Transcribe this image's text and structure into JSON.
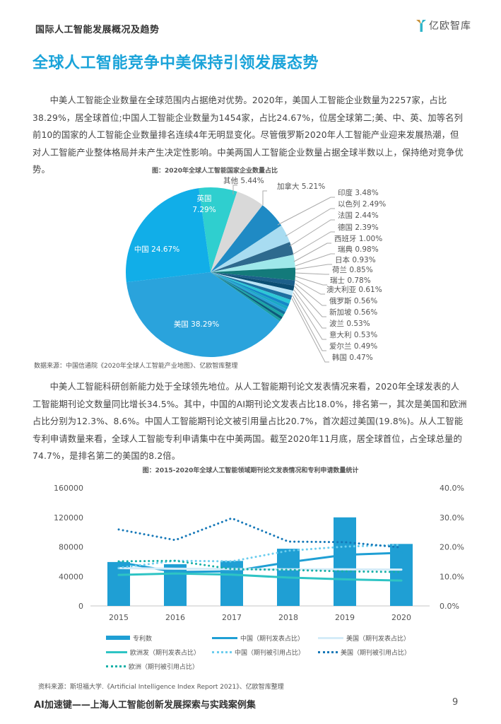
{
  "header": {
    "section_title": "国际人工智能发展概况及趋势",
    "logo_text": "亿欧智库",
    "logo_icon": "y-logo-icon"
  },
  "main_title": "全球人工智能竞争中美保持引领发展态势",
  "paragraphs": [
    "中美人工智能企业数量在全球范围内占据绝对优势。2020年，美国人工智能企业数量为2257家，占比38.29%，居全球首位;中国人工智能企业数量为1454家，占比24.67%，位居全球第二;美、中、英、加等名列前10的国家的人工智能企业数量排名连续4年无明显变化。尽管俄罗斯2020年人工智能产业迎来发展热潮，但对人工智能产业整体格局并未产生决定性影响。中美两国人工智能企业数量占据全球半数以上，保持绝对竞争优势。",
    "中美人工智能科研创新能力处于全球领先地位。从人工智能期刊论文发表情况来看，2020年全球发表的人工智能期刊论文数量同比增长34.5%。其中，中国的AI期刊论文发表占比18.0%，排名第一，其次是美国和欧洲占比分别为12.3%、8.6%。中国人工智能期刊论文被引用量占比20.7%，首次超过美国(19.8%)。从人工智能专利申请数量来看，全球人工智能专利申请集中在中美两国。截至2020年11月底，居全球首位，占全球总量的74.7%，是排名第二的美国的8.2倍。"
  ],
  "figure1": {
    "caption": "图：2020年全球人工智能国家企业数量占比",
    "source": "数据来源：中国信通院《2020年全球人工智能产业地图》、亿欧智库整理"
  },
  "figure2": {
    "caption": "图：2015-2020年全球人工智能领域期刊论文发表情况和专利申请数量统计",
    "source": "资料来源：斯坦福大学.《Artificial Intelligence Index Report 2021》、亿欧智库整理"
  },
  "footer": {
    "title": "AI加速键——上海人工智能创新发展探索与实践案例集",
    "page_number": "9"
  },
  "chart_data": [
    {
      "type": "pie",
      "title": "图：2020年全球人工智能国家企业数量占比",
      "categories": [
        "美国",
        "中国",
        "英国",
        "其他",
        "加拿大",
        "印度",
        "以色列",
        "法国",
        "德国",
        "西班牙",
        "瑞典",
        "日本",
        "荷兰",
        "瑞士",
        "澳大利亚",
        "俄罗斯",
        "新加坡",
        "波兰",
        "意大利",
        "爱尔兰",
        "韩国"
      ],
      "values": [
        38.29,
        24.67,
        7.29,
        5.44,
        5.21,
        3.48,
        2.49,
        2.44,
        2.39,
        1.0,
        0.98,
        0.93,
        0.85,
        0.78,
        0.61,
        0.56,
        0.56,
        0.53,
        0.53,
        0.49,
        0.47
      ],
      "labels": [
        "美国 38.29%",
        "中国 24.67%",
        "英国 7.29%",
        "其他 5.44%",
        "加拿大 5.21%",
        "印度 3.48%",
        "以色列 2.49%",
        "法国 2.44%",
        "德国 2.39%",
        "西班牙 1.00%",
        "瑞典 0.98%",
        "日本 0.93%",
        "荷兰 0.85%",
        "瑞士 0.78%",
        "澳大利亚 0.61%",
        "俄罗斯 0.56%",
        "新加坡 0.56%",
        "波兰 0.53%",
        "意大利 0.53%",
        "爱尔兰 0.49%",
        "韩国 0.47%"
      ],
      "colors": [
        "#2aa3dc",
        "#11aee8",
        "#2fcfcf",
        "#d9d9d9",
        "#1f8ac4",
        "#a8dcf1",
        "#2e6a8e",
        "#9fe8ea",
        "#137a7a",
        "#1c5f8a",
        "#0c4e73",
        "#b9e4f6",
        "#1e6fa0",
        "#2cc7d6",
        "#1587c8",
        "#1aa8c4",
        "#28a2d6",
        "#116e9c",
        "#19a6a6",
        "#0a5a7a",
        "#1c9da0"
      ],
      "unit": "%"
    },
    {
      "type": "bar+line",
      "title": "图：2015-2020年全球人工智能领域期刊论文发表情况和专利申请数量统计",
      "categories": [
        "2015",
        "2016",
        "2017",
        "2018",
        "2019",
        "2020"
      ],
      "y_left": {
        "ticks": [
          "0",
          "40000",
          "80000",
          "120000",
          "160000"
        ],
        "range": [
          0,
          160000
        ]
      },
      "y_right": {
        "ticks": [
          "0.0%",
          "10.0%",
          "20.0%",
          "30.0%",
          "40.0%"
        ],
        "range": [
          0,
          40
        ]
      },
      "series": [
        {
          "name": "专利数",
          "type": "bar",
          "axis": "left",
          "color": "#1f9fd4",
          "values": [
            59500,
            56500,
            61000,
            77500,
            120000,
            84000
          ]
        },
        {
          "name": "中国（期刊发表占比）",
          "type": "line",
          "style": "solid",
          "axis": "right",
          "color": "#1f9fd4",
          "values": [
            14.8,
            11.5,
            11.7,
            14.8,
            17.3,
            18.0
          ]
        },
        {
          "name": "美国（期刊发表占比）",
          "type": "line",
          "style": "solid",
          "axis": "right",
          "color": "#d4ecf8",
          "values": [
            12.8,
            12.6,
            12.5,
            12.4,
            12.4,
            12.3
          ]
        },
        {
          "name": "欧洲发（期刊发表占比）",
          "type": "line",
          "style": "solid",
          "axis": "right",
          "color": "#2ec4c4",
          "values": [
            10.5,
            11.0,
            10.6,
            9.6,
            9.0,
            8.6
          ]
        },
        {
          "name": "中国（期刊被引用占比）",
          "type": "line",
          "style": "dotted",
          "axis": "right",
          "color": "#6ccdee",
          "values": [
            12.9,
            15.3,
            15.1,
            18.7,
            20.1,
            20.7
          ]
        },
        {
          "name": "美国（期刊被引用占比）",
          "type": "line",
          "style": "dotted",
          "axis": "right",
          "color": "#1678b8",
          "values": [
            25.9,
            22.3,
            29.7,
            21.8,
            21.6,
            19.8
          ]
        },
        {
          "name": "欧洲（期刊被引用占比）",
          "type": "line",
          "style": "dotted",
          "axis": "right",
          "color": "#17b0a8",
          "values": [
            15.1,
            15.3,
            12.5,
            12.2,
            11.7,
            11.5
          ]
        }
      ],
      "legend_position": "bottom",
      "grid": false
    }
  ]
}
